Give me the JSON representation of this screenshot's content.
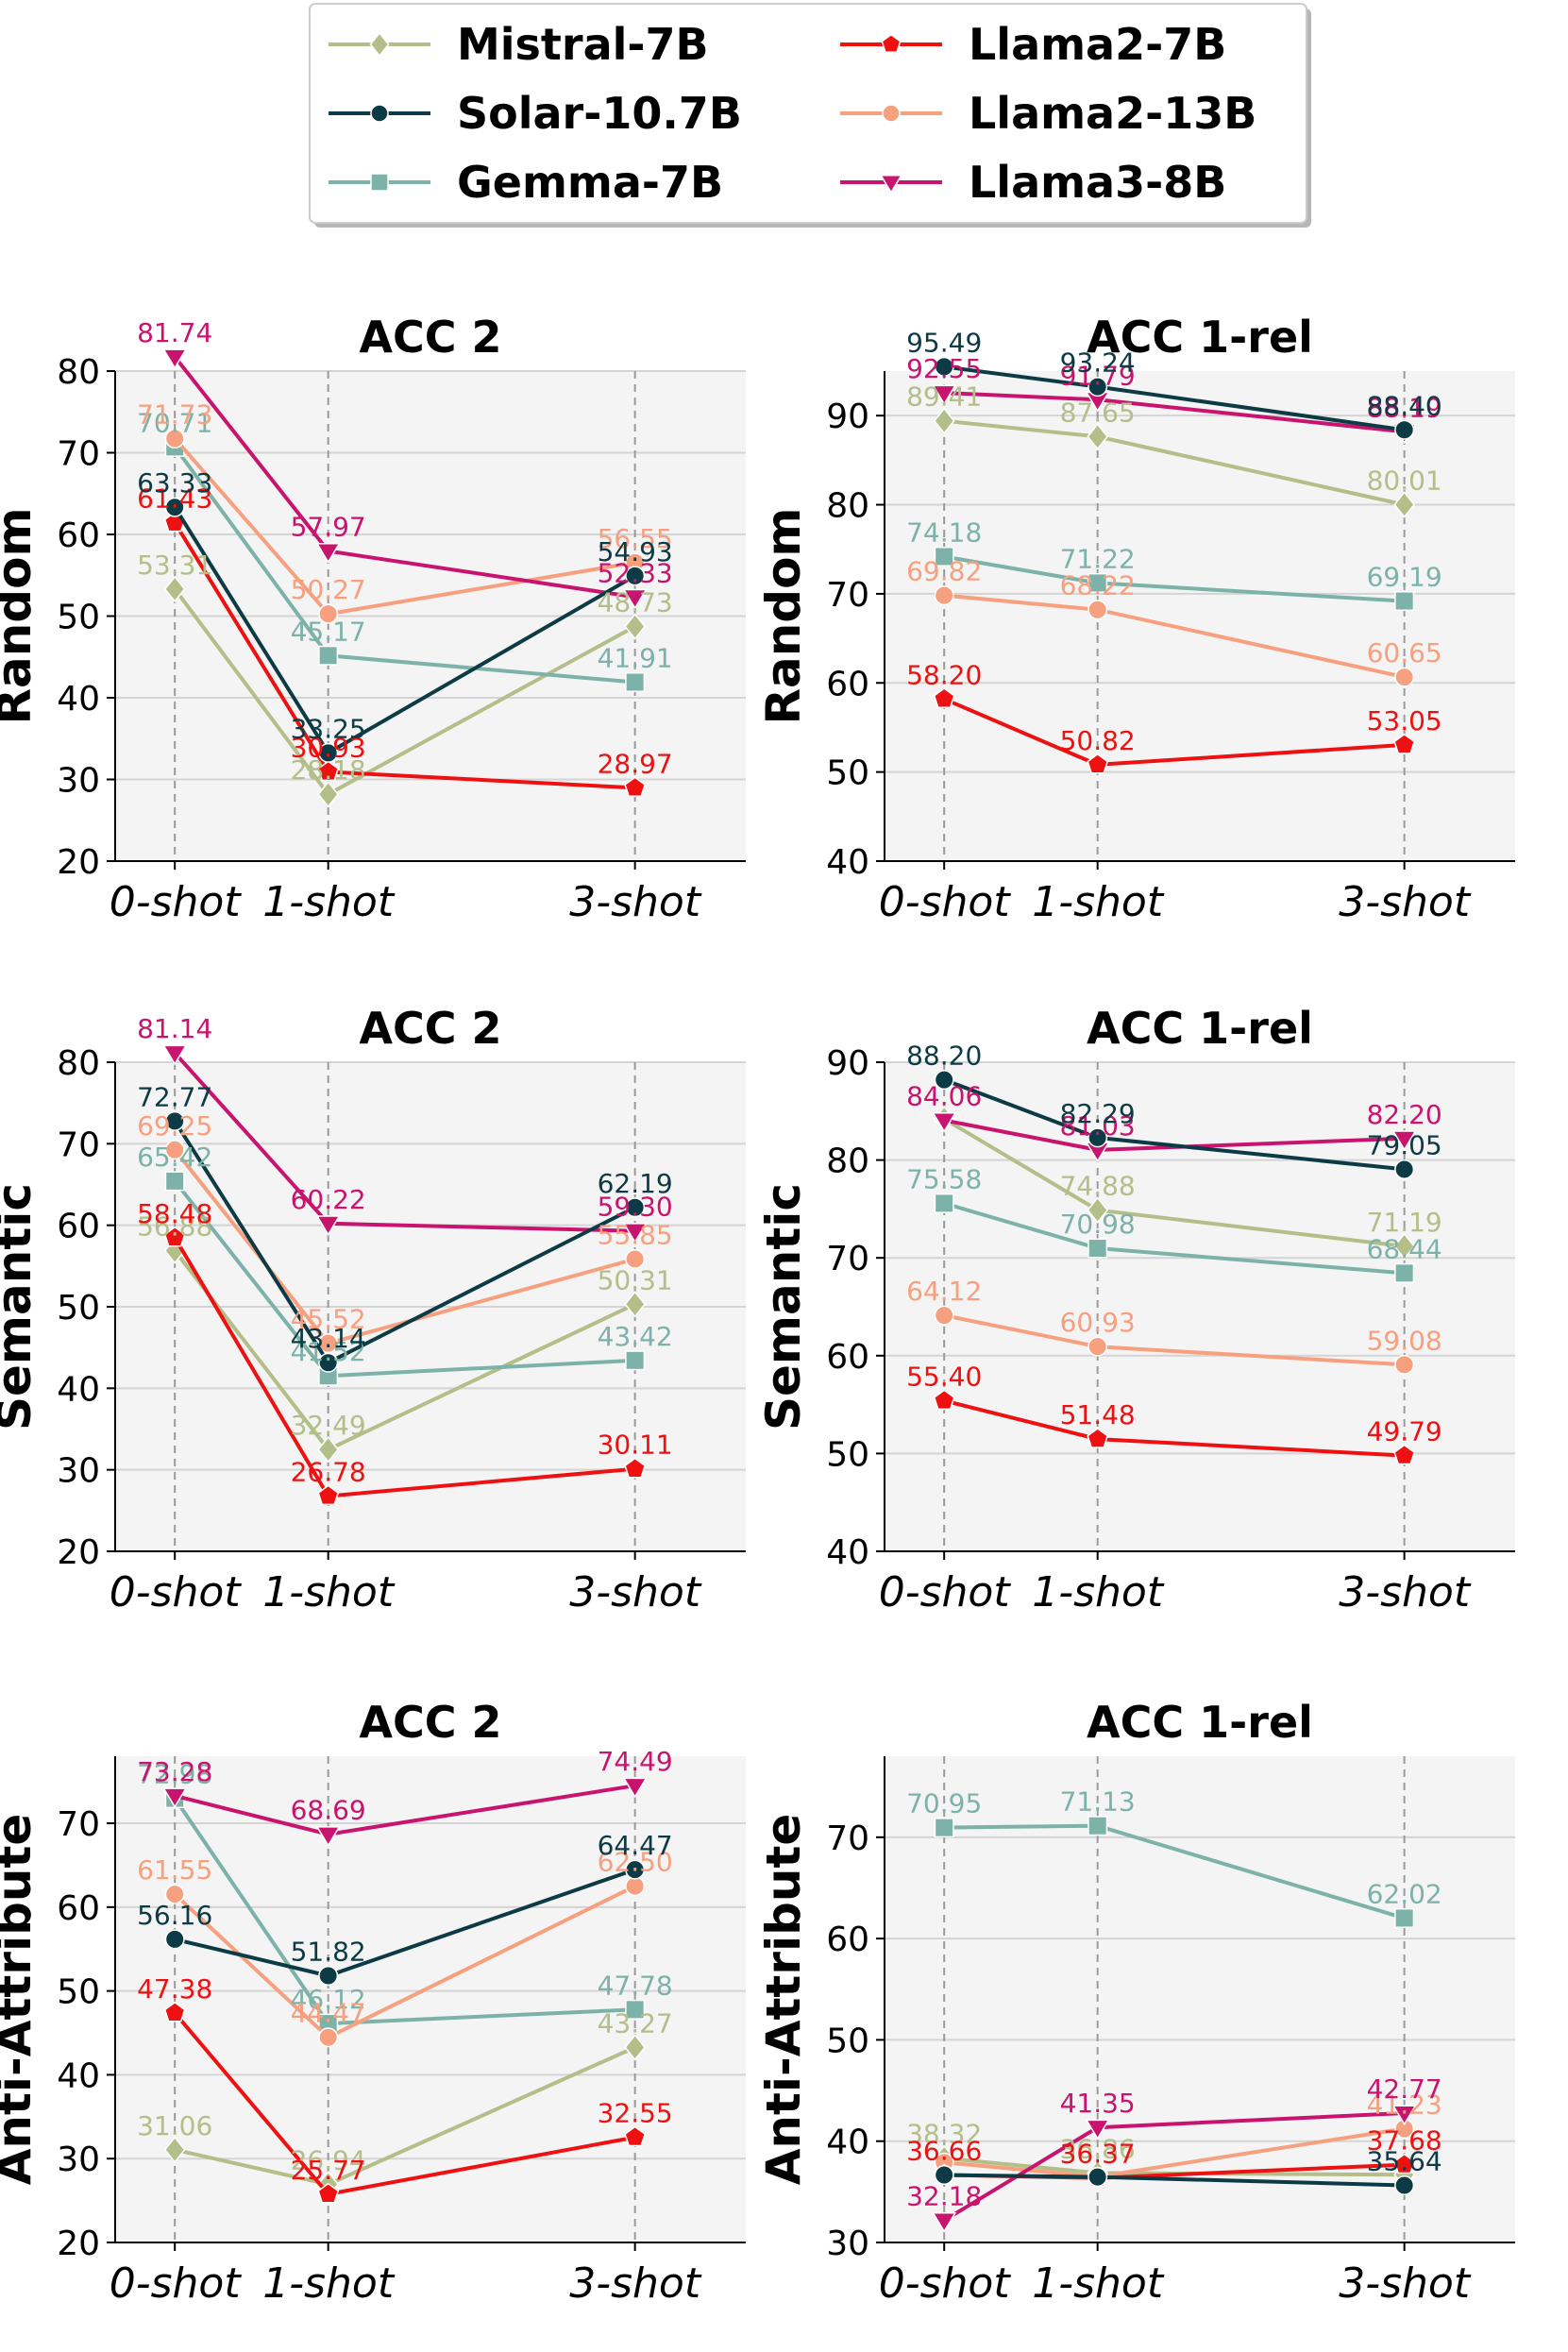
{
  "chart_data": {
    "type": "line",
    "x": [
      "0-shot",
      "1-shot",
      "3-shot"
    ],
    "legend": {
      "placement": "top-center",
      "entries": [
        {
          "name": "Mistral-7B",
          "color": "#B3BE89",
          "marker": "diamond"
        },
        {
          "name": "Solar-10.7B",
          "color": "#0D3B45",
          "marker": "circle"
        },
        {
          "name": "Gemma-7B",
          "color": "#7DB2A8",
          "marker": "square"
        },
        {
          "name": "Llama2-7B",
          "color": "#EE1111",
          "marker": "pentagon"
        },
        {
          "name": "Llama2-13B",
          "color": "#F7A07F",
          "marker": "circle"
        },
        {
          "name": "Llama3-8B",
          "color": "#C8146E",
          "marker": "triangle-down"
        }
      ]
    },
    "panels": [
      {
        "id": "random-acc2",
        "row_label": "Random",
        "title": "ACC 2",
        "ylim": [
          20,
          80
        ],
        "yticks": [
          20,
          30,
          40,
          50,
          60,
          70,
          80
        ],
        "series": [
          {
            "name": "Mistral-7B",
            "values": [
              53.31,
              28.18,
              48.73
            ],
            "labels": [
              "53.31",
              "28.18",
              "48.73"
            ]
          },
          {
            "name": "Solar-10.7B",
            "values": [
              63.33,
              33.25,
              54.93
            ],
            "labels": [
              "63.33",
              "33.25",
              "54.93"
            ]
          },
          {
            "name": "Gemma-7B",
            "values": [
              70.71,
              45.17,
              41.91
            ],
            "labels": [
              "70.71",
              "45.17",
              "41.91"
            ]
          },
          {
            "name": "Llama2-7B",
            "values": [
              61.43,
              30.93,
              28.97
            ],
            "labels": [
              "61.43",
              "30.93",
              "28.97"
            ]
          },
          {
            "name": "Llama2-13B",
            "values": [
              71.73,
              50.27,
              56.55
            ],
            "labels": [
              "71.73",
              "50.27",
              "56.55"
            ]
          },
          {
            "name": "Llama3-8B",
            "values": [
              81.74,
              57.97,
              52.33
            ],
            "labels": [
              "81.74",
              "57.97",
              "52.33"
            ]
          }
        ]
      },
      {
        "id": "random-acc1",
        "row_label": "Random",
        "title": "ACC 1-rel",
        "ylim": [
          40,
          95
        ],
        "yticks": [
          40,
          50,
          60,
          70,
          80,
          90
        ],
        "series": [
          {
            "name": "Mistral-7B",
            "values": [
              89.41,
              87.65,
              80.01
            ],
            "labels": [
              "89.41",
              "87.65",
              "80.01"
            ]
          },
          {
            "name": "Solar-10.7B",
            "values": [
              95.49,
              93.24,
              88.4
            ],
            "labels": [
              "95.49",
              "93.24",
              "88.40"
            ]
          },
          {
            "name": "Gemma-7B",
            "values": [
              74.18,
              71.22,
              69.19
            ],
            "labels": [
              "74.18",
              "71.22",
              "69.19"
            ]
          },
          {
            "name": "Llama2-7B",
            "values": [
              58.2,
              50.82,
              53.05
            ],
            "labels": [
              "58.20",
              "50.82",
              "53.05"
            ]
          },
          {
            "name": "Llama2-13B",
            "values": [
              69.82,
              68.22,
              60.65
            ],
            "labels": [
              "69.82",
              "68.22",
              "60.65"
            ]
          },
          {
            "name": "Llama3-8B",
            "values": [
              92.55,
              91.79,
              88.19
            ],
            "labels": [
              "92.55",
              "91.79",
              "88.19"
            ]
          }
        ]
      },
      {
        "id": "semantic-acc2",
        "row_label": "Semantic",
        "title": "ACC 2",
        "ylim": [
          20,
          80
        ],
        "yticks": [
          20,
          30,
          40,
          50,
          60,
          70,
          80
        ],
        "series": [
          {
            "name": "Mistral-7B",
            "values": [
              56.88,
              32.49,
              50.31
            ],
            "labels": [
              "56.88",
              "32.49",
              "50.31"
            ]
          },
          {
            "name": "Solar-10.7B",
            "values": [
              72.77,
              43.14,
              62.19
            ],
            "labels": [
              "72.77",
              "43.14",
              "62.19"
            ]
          },
          {
            "name": "Gemma-7B",
            "values": [
              65.42,
              41.52,
              43.42
            ],
            "labels": [
              "65.42",
              "41.52",
              "43.42"
            ]
          },
          {
            "name": "Llama2-7B",
            "values": [
              58.48,
              26.78,
              30.11
            ],
            "labels": [
              "58.48",
              "26.78",
              "30.11"
            ]
          },
          {
            "name": "Llama2-13B",
            "values": [
              69.25,
              45.52,
              55.85
            ],
            "labels": [
              "69.25",
              "45.52",
              "55.85"
            ]
          },
          {
            "name": "Llama3-8B",
            "values": [
              81.14,
              60.22,
              59.3
            ],
            "labels": [
              "81.14",
              "60.22",
              "59.30"
            ]
          }
        ]
      },
      {
        "id": "semantic-acc1",
        "row_label": "Semantic",
        "title": "ACC 1-rel",
        "ylim": [
          40,
          90
        ],
        "yticks": [
          40,
          50,
          60,
          70,
          80,
          90
        ],
        "series": [
          {
            "name": "Mistral-7B",
            "values": [
              84.2,
              74.88,
              71.19
            ],
            "labels": [
              "",
              "74.88",
              "71.19"
            ]
          },
          {
            "name": "Solar-10.7B",
            "values": [
              88.2,
              82.29,
              79.05
            ],
            "labels": [
              "88.20",
              "82.29",
              "79.05"
            ]
          },
          {
            "name": "Gemma-7B",
            "values": [
              75.58,
              70.98,
              68.44
            ],
            "labels": [
              "75.58",
              "70.98",
              "68.44"
            ]
          },
          {
            "name": "Llama2-7B",
            "values": [
              55.4,
              51.48,
              49.79
            ],
            "labels": [
              "55.40",
              "51.48",
              "49.79"
            ]
          },
          {
            "name": "Llama2-13B",
            "values": [
              64.12,
              60.93,
              59.08
            ],
            "labels": [
              "64.12",
              "60.93",
              "59.08"
            ]
          },
          {
            "name": "Llama3-8B",
            "values": [
              84.06,
              81.03,
              82.2
            ],
            "labels": [
              "84.06",
              "81.03",
              "82.20"
            ]
          }
        ]
      },
      {
        "id": "anti-acc2",
        "row_label": "Anti-Attribute",
        "title": "ACC 2",
        "ylim": [
          20,
          78
        ],
        "yticks": [
          20,
          30,
          40,
          50,
          60,
          70
        ],
        "series": [
          {
            "name": "Mistral-7B",
            "values": [
              31.06,
              26.94,
              43.27
            ],
            "labels": [
              "31.06",
              "26.94",
              "43.27"
            ]
          },
          {
            "name": "Solar-10.7B",
            "values": [
              56.16,
              51.82,
              64.47
            ],
            "labels": [
              "56.16",
              "51.82",
              "64.47"
            ]
          },
          {
            "name": "Gemma-7B",
            "values": [
              72.98,
              46.12,
              47.78
            ],
            "labels": [
              "72.98",
              "46.12",
              "47.78"
            ]
          },
          {
            "name": "Llama2-7B",
            "values": [
              47.38,
              25.77,
              32.55
            ],
            "labels": [
              "47.38",
              "25.77",
              "32.55"
            ]
          },
          {
            "name": "Llama2-13B",
            "values": [
              61.55,
              44.47,
              62.5
            ],
            "labels": [
              "61.55",
              "44.47",
              "62.50"
            ]
          },
          {
            "name": "Llama3-8B",
            "values": [
              73.28,
              68.69,
              74.49
            ],
            "labels": [
              "73.28",
              "68.69",
              "74.49"
            ]
          }
        ]
      },
      {
        "id": "anti-acc1",
        "row_label": "Anti-Attribute",
        "title": "ACC 1-rel",
        "ylim": [
          30,
          78
        ],
        "yticks": [
          30,
          40,
          50,
          60,
          70
        ],
        "series": [
          {
            "name": "Mistral-7B",
            "values": [
              38.32,
              36.86,
              36.68
            ],
            "labels": [
              "38.32",
              "36.86",
              ""
            ]
          },
          {
            "name": "Solar-10.7B",
            "values": [
              36.66,
              36.47,
              35.64
            ],
            "labels": [
              "",
              "",
              "35.64"
            ]
          },
          {
            "name": "Gemma-7B",
            "values": [
              70.95,
              71.13,
              62.02
            ],
            "labels": [
              "70.95",
              "71.13",
              "62.02"
            ]
          },
          {
            "name": "Llama2-7B",
            "values": [
              36.66,
              36.37,
              37.68
            ],
            "labels": [
              "36.66",
              "36.37",
              "37.68"
            ]
          },
          {
            "name": "Llama2-13B",
            "values": [
              37.9,
              36.5,
              41.23
            ],
            "labels": [
              "",
              "",
              "41.23"
            ]
          },
          {
            "name": "Llama3-8B",
            "values": [
              32.18,
              41.35,
              42.77
            ],
            "labels": [
              "32.18",
              "41.35",
              "42.77"
            ]
          }
        ]
      }
    ]
  }
}
